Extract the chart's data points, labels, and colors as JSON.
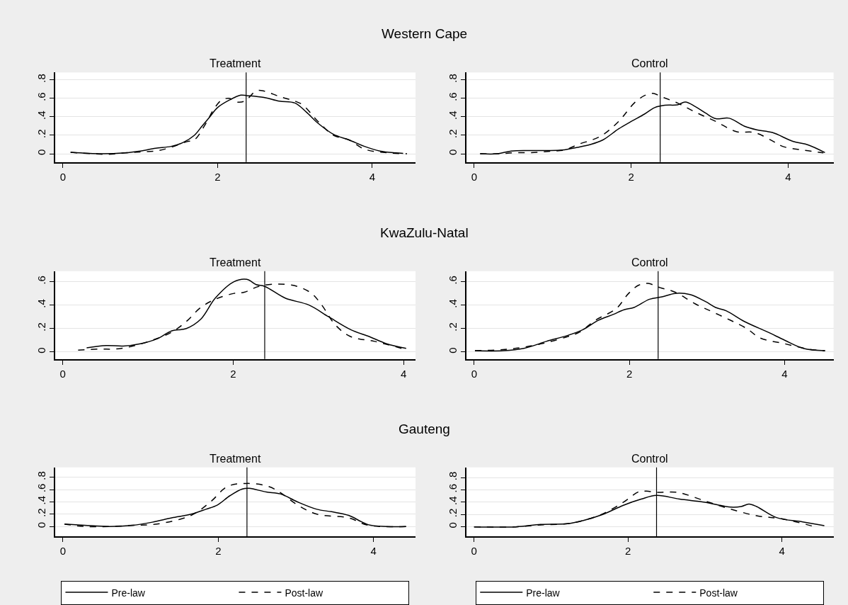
{
  "chart_data": [
    {
      "type": "line",
      "title": "Western Cape",
      "subtitle": "Treatment",
      "xlim": [
        -0.1,
        4.56
      ],
      "xticks": [
        0,
        2,
        4
      ],
      "ylim": [
        -0.09,
        0.88
      ],
      "yticks": [
        0,
        {
          "value": 0.2,
          "label": ".2"
        },
        {
          "value": 0.4,
          "label": ".4"
        },
        {
          "value": 0.6,
          "label": ".6"
        },
        {
          "value": 0.8,
          "label": ".8"
        }
      ],
      "grid": "y",
      "legend": false,
      "ref_lines": [
        {
          "axis": "x",
          "value": 2.37,
          "color": "#000000"
        }
      ],
      "series": [
        {
          "color": "#000000",
          "line_style": "solid",
          "x": [
            0.1,
            0.5,
            0.8,
            1.0,
            1.2,
            1.4,
            1.55,
            1.7,
            1.8,
            1.9,
            2.0,
            2.15,
            2.3,
            2.38,
            2.6,
            2.8,
            3.0,
            3.15,
            3.3,
            3.5,
            3.7,
            3.9,
            4.1,
            4.3,
            4.4
          ],
          "values": [
            0.015,
            0.0,
            0.01,
            0.03,
            0.06,
            0.08,
            0.12,
            0.2,
            0.3,
            0.4,
            0.5,
            0.58,
            0.635,
            0.63,
            0.61,
            0.57,
            0.55,
            0.45,
            0.33,
            0.21,
            0.15,
            0.08,
            0.03,
            0.01,
            0.005
          ]
        },
        {
          "color": "#000000",
          "line_style": "dashed",
          "x": [
            0.1,
            0.6,
            0.8,
            1.0,
            1.2,
            1.4,
            1.6,
            1.7,
            1.85,
            1.95,
            2.05,
            2.15,
            2.25,
            2.35,
            2.5,
            2.6,
            2.8,
            3.0,
            3.1,
            3.3,
            3.5,
            3.7,
            3.9,
            4.2,
            4.45
          ],
          "values": [
            0.015,
            -0.005,
            0.01,
            0.02,
            0.03,
            0.07,
            0.13,
            0.15,
            0.33,
            0.48,
            0.58,
            0.6,
            0.56,
            0.57,
            0.68,
            0.68,
            0.62,
            0.57,
            0.53,
            0.35,
            0.2,
            0.15,
            0.05,
            0.01,
            0.0
          ]
        }
      ]
    },
    {
      "type": "line",
      "subtitle": "Control",
      "xlim": [
        -0.1,
        4.58
      ],
      "xticks": [
        0,
        2,
        4
      ],
      "ylim": [
        -0.09,
        0.88
      ],
      "yticks": [
        0,
        {
          "value": 0.2,
          "label": ".2"
        },
        {
          "value": 0.4,
          "label": ".4"
        },
        {
          "value": 0.6,
          "label": ".6"
        },
        {
          "value": 0.8,
          "label": ".8"
        }
      ],
      "grid": "y",
      "legend": false,
      "ref_lines": [
        {
          "axis": "x",
          "value": 2.37,
          "color": "#000000"
        }
      ],
      "series": [
        {
          "color": "#000000",
          "line_style": "solid",
          "x": [
            0.075,
            0.3,
            0.47,
            0.7,
            0.92,
            1.12,
            1.32,
            1.48,
            1.64,
            1.84,
            2.0,
            2.17,
            2.3,
            2.43,
            2.59,
            2.69,
            2.82,
            2.95,
            3.08,
            3.25,
            3.44,
            3.6,
            3.8,
            4.06,
            4.26,
            4.47
          ],
          "values": [
            0.0,
            0.0,
            0.03,
            0.035,
            0.035,
            0.04,
            0.07,
            0.1,
            0.15,
            0.27,
            0.35,
            0.43,
            0.5,
            0.525,
            0.53,
            0.56,
            0.51,
            0.44,
            0.38,
            0.385,
            0.3,
            0.26,
            0.23,
            0.135,
            0.095,
            0.013
          ]
        },
        {
          "color": "#000000",
          "line_style": "dashed",
          "x": [
            0.075,
            0.3,
            0.5,
            0.8,
            1.0,
            1.15,
            1.32,
            1.61,
            1.84,
            2.04,
            2.17,
            2.28,
            2.38,
            2.59,
            2.82,
            3.08,
            3.34,
            3.57,
            3.8,
            3.93,
            4.19,
            4.45
          ],
          "values": [
            0.0,
            0.0,
            0.01,
            0.015,
            0.03,
            0.04,
            0.1,
            0.19,
            0.35,
            0.55,
            0.63,
            0.655,
            0.62,
            0.55,
            0.45,
            0.35,
            0.24,
            0.23,
            0.14,
            0.08,
            0.04,
            0.01
          ]
        }
      ]
    },
    {
      "type": "line",
      "title": "KwaZulu-Natal",
      "subtitle": "Treatment",
      "xlim": [
        -0.09,
        4.14
      ],
      "xticks": [
        0,
        2,
        4
      ],
      "ylim": [
        -0.06,
        0.69
      ],
      "yticks": [
        0,
        {
          "value": 0.2,
          "label": ".2"
        },
        {
          "value": 0.4,
          "label": ".4"
        },
        {
          "value": 0.6,
          "label": ".6"
        }
      ],
      "grid": "y",
      "legend": false,
      "ref_lines": [
        {
          "axis": "x",
          "value": 2.37,
          "color": "#000000"
        }
      ],
      "series": [
        {
          "color": "#000000",
          "line_style": "solid",
          "x": [
            0.28,
            0.51,
            0.71,
            0.91,
            1.1,
            1.28,
            1.45,
            1.62,
            1.79,
            2.01,
            2.16,
            2.27,
            2.37,
            2.61,
            2.89,
            3.12,
            3.38,
            3.6,
            3.8,
            4.03
          ],
          "values": [
            0.035,
            0.055,
            0.05,
            0.07,
            0.11,
            0.18,
            0.2,
            0.28,
            0.46,
            0.6,
            0.62,
            0.575,
            0.56,
            0.46,
            0.4,
            0.3,
            0.19,
            0.13,
            0.07,
            0.03
          ]
        },
        {
          "color": "#000000",
          "line_style": "dashed",
          "x": [
            0.18,
            0.43,
            0.62,
            0.82,
            1.05,
            1.28,
            1.45,
            1.62,
            1.79,
            2.01,
            2.13,
            2.3,
            2.52,
            2.75,
            2.92,
            3.04,
            3.2,
            3.38,
            3.66,
            4.03
          ],
          "values": [
            0.015,
            0.025,
            0.025,
            0.05,
            0.1,
            0.17,
            0.26,
            0.38,
            0.45,
            0.5,
            0.51,
            0.56,
            0.58,
            0.56,
            0.5,
            0.4,
            0.23,
            0.13,
            0.09,
            0.02
          ]
        }
      ]
    },
    {
      "type": "line",
      "subtitle": "Control",
      "xlim": [
        -0.1,
        4.63
      ],
      "xticks": [
        0,
        2,
        4
      ],
      "ylim": [
        -0.06,
        0.69
      ],
      "yticks": [
        0,
        {
          "value": 0.2,
          "label": ".2"
        },
        {
          "value": 0.4,
          "label": ".4"
        },
        {
          "value": 0.6,
          "label": ".6"
        }
      ],
      "grid": "y",
      "legend": false,
      "ref_lines": [
        {
          "axis": "x",
          "value": 2.37,
          "color": "#000000"
        }
      ],
      "series": [
        {
          "color": "#000000",
          "line_style": "solid",
          "x": [
            0.01,
            0.37,
            0.64,
            0.93,
            1.2,
            1.4,
            1.6,
            1.79,
            1.93,
            2.06,
            2.26,
            2.42,
            2.59,
            2.78,
            2.98,
            3.11,
            3.25,
            3.48,
            3.78,
            4.0,
            4.24,
            4.52
          ],
          "values": [
            0.01,
            0.01,
            0.03,
            0.09,
            0.14,
            0.19,
            0.27,
            0.32,
            0.36,
            0.38,
            0.45,
            0.47,
            0.5,
            0.49,
            0.43,
            0.38,
            0.35,
            0.26,
            0.17,
            0.1,
            0.03,
            0.01
          ]
        },
        {
          "color": "#000000",
          "line_style": "dashed",
          "x": [
            0.01,
            0.37,
            0.64,
            0.93,
            1.2,
            1.36,
            1.56,
            1.83,
            1.99,
            2.12,
            2.24,
            2.39,
            2.59,
            2.85,
            3.11,
            3.51,
            3.68,
            4.0,
            4.34,
            4.52
          ],
          "values": [
            0.01,
            0.02,
            0.04,
            0.08,
            0.13,
            0.17,
            0.27,
            0.37,
            0.5,
            0.57,
            0.585,
            0.55,
            0.51,
            0.41,
            0.33,
            0.2,
            0.12,
            0.07,
            0.02,
            0.01
          ]
        }
      ]
    },
    {
      "type": "line",
      "title": "Gauteng",
      "subtitle": "Treatment",
      "xlim": [
        -0.1,
        4.54
      ],
      "xticks": [
        0,
        2,
        4
      ],
      "ylim": [
        -0.16,
        0.96
      ],
      "yticks": [
        0,
        {
          "value": 0.2,
          "label": ".2"
        },
        {
          "value": 0.4,
          "label": ".4"
        },
        {
          "value": 0.6,
          "label": ".6"
        },
        {
          "value": 0.8,
          "label": ".8"
        }
      ],
      "grid": "y",
      "legend": "bottom",
      "ref_lines": [
        {
          "axis": "x",
          "value": 2.37,
          "color": "#000000"
        }
      ],
      "series": [
        {
          "name": "Pre-law",
          "color": "#000000",
          "line_style": "solid",
          "x": [
            0.02,
            0.28,
            0.59,
            0.9,
            1.15,
            1.4,
            1.65,
            1.84,
            1.99,
            2.15,
            2.31,
            2.4,
            2.62,
            2.8,
            3.02,
            3.27,
            3.46,
            3.68,
            3.93,
            4.17,
            4.42
          ],
          "values": [
            0.04,
            0.02,
            0.0,
            0.02,
            0.07,
            0.14,
            0.2,
            0.28,
            0.35,
            0.5,
            0.61,
            0.62,
            0.56,
            0.53,
            0.4,
            0.28,
            0.24,
            0.18,
            0.03,
            0.0,
            0.0
          ]
        },
        {
          "name": "Post-law",
          "color": "#000000",
          "line_style": "dashed",
          "x": [
            0.02,
            0.28,
            0.59,
            0.9,
            1.21,
            1.65,
            1.9,
            2.12,
            2.37,
            2.65,
            2.8,
            3.02,
            3.27,
            3.68,
            3.93,
            4.42
          ],
          "values": [
            0.04,
            0.0,
            0.0,
            0.02,
            0.04,
            0.18,
            0.4,
            0.65,
            0.7,
            0.65,
            0.55,
            0.35,
            0.2,
            0.14,
            0.02,
            0.0
          ]
        }
      ]
    },
    {
      "type": "line",
      "subtitle": "Control",
      "xlim": [
        -0.1,
        4.67
      ],
      "xticks": [
        0,
        2,
        4
      ],
      "ylim": [
        -0.155,
        0.965
      ],
      "yticks": [
        0,
        {
          "value": 0.2,
          "label": ".2"
        },
        {
          "value": 0.4,
          "label": ".4"
        },
        {
          "value": 0.6,
          "label": ".6"
        },
        {
          "value": 0.8,
          "label": ".8"
        }
      ],
      "grid": "y",
      "legend": "bottom",
      "ref_lines": [
        {
          "axis": "x",
          "value": 2.37,
          "color": "#000000"
        }
      ],
      "series": [
        {
          "name": "Pre-law",
          "color": "#000000",
          "line_style": "solid",
          "x": [
            0.0,
            0.54,
            0.87,
            1.21,
            1.41,
            1.67,
            1.94,
            2.17,
            2.37,
            2.67,
            3.0,
            3.33,
            3.47,
            3.57,
            3.67,
            3.93,
            4.27,
            4.55
          ],
          "values": [
            0.0,
            0.0,
            0.04,
            0.05,
            0.1,
            0.2,
            0.35,
            0.45,
            0.51,
            0.45,
            0.4,
            0.32,
            0.33,
            0.37,
            0.33,
            0.15,
            0.08,
            0.02
          ]
        },
        {
          "name": "Post-law",
          "color": "#000000",
          "line_style": "dashed",
          "x": [
            0.0,
            0.54,
            0.87,
            1.21,
            1.41,
            1.67,
            1.94,
            2.14,
            2.24,
            2.37,
            2.64,
            3.0,
            3.3,
            3.67,
            4.0,
            4.43
          ],
          "values": [
            0.0,
            0.0,
            0.03,
            0.05,
            0.1,
            0.21,
            0.4,
            0.57,
            0.58,
            0.56,
            0.56,
            0.42,
            0.3,
            0.18,
            0.13,
            0.0
          ]
        }
      ]
    }
  ]
}
